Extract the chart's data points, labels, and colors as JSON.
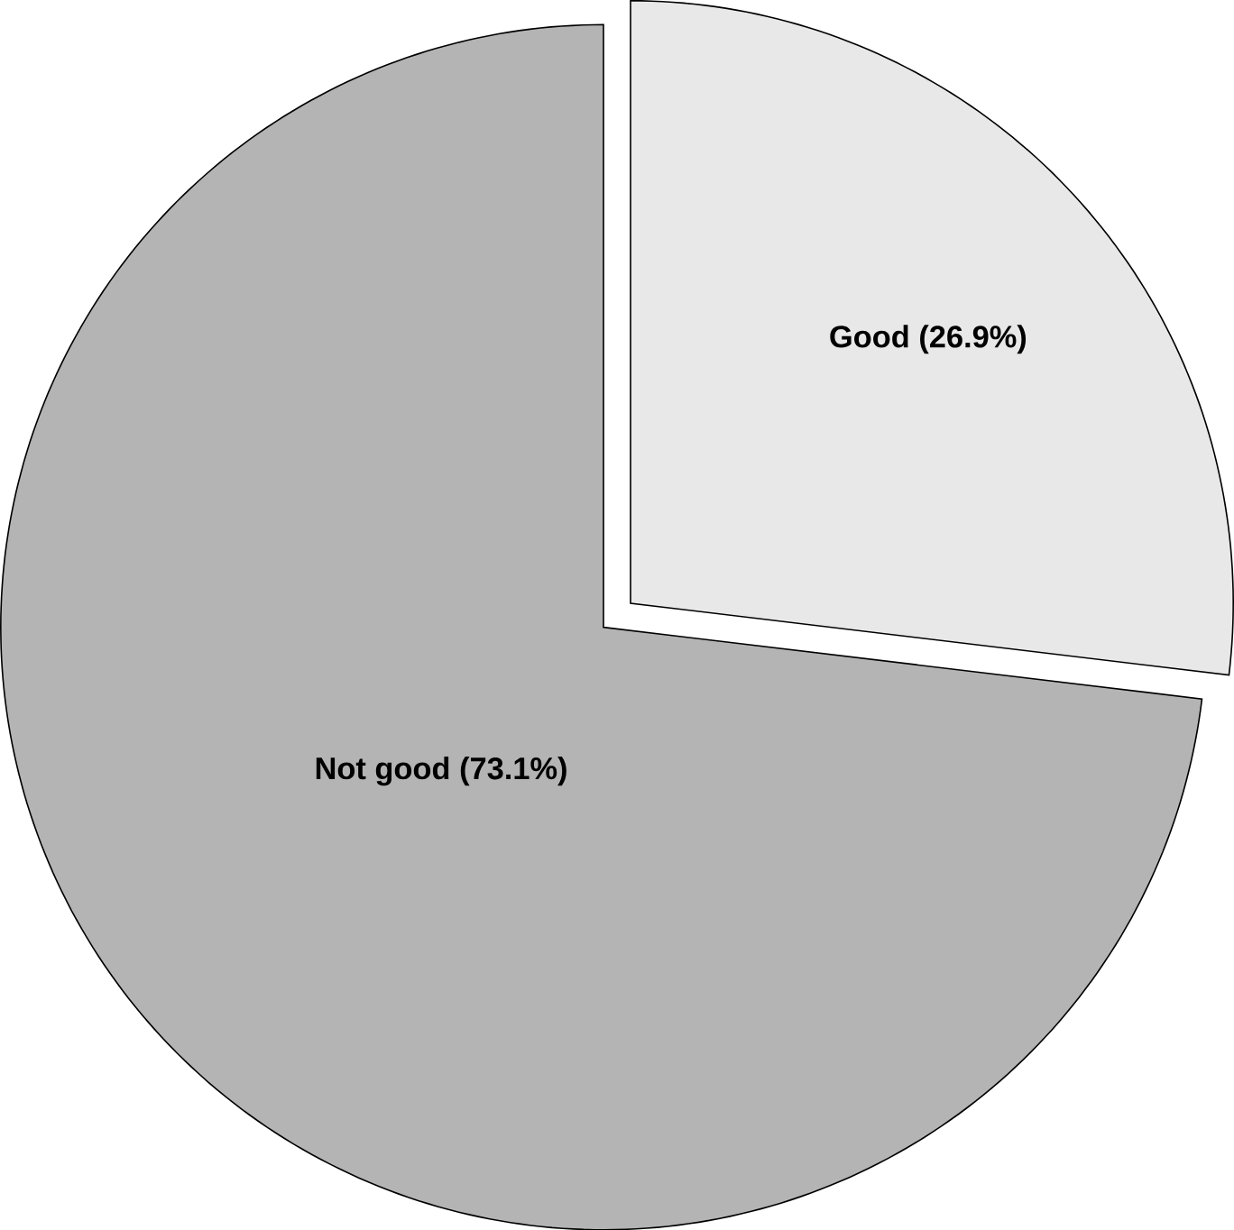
{
  "chart_data": {
    "type": "pie",
    "categories": [
      "Good",
      "Not good"
    ],
    "values": [
      26.9,
      73.1
    ],
    "value_labels": [
      "(26.9%)",
      "(73.1%)"
    ],
    "colors": [
      "#e8e8e8",
      "#b4b4b4"
    ]
  }
}
